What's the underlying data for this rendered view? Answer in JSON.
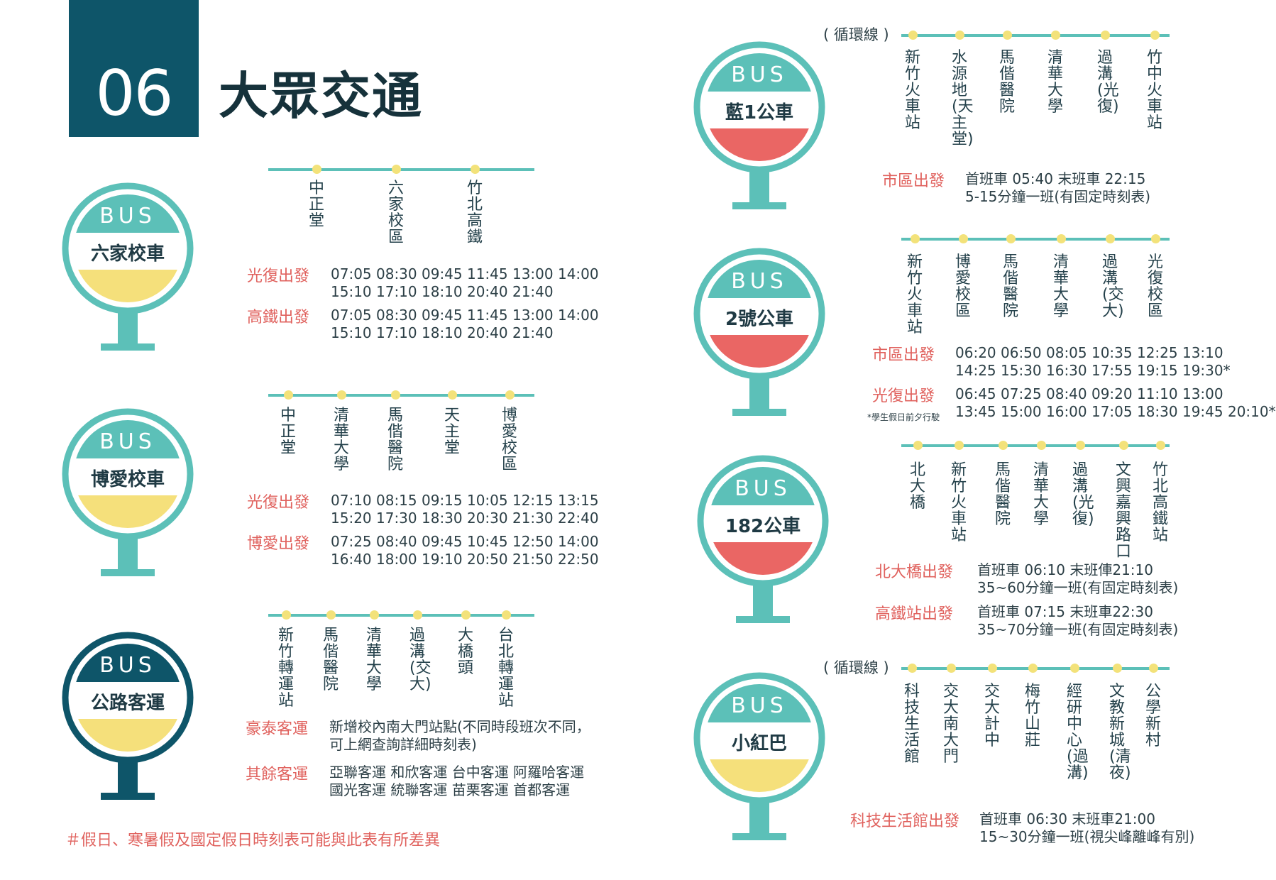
{
  "header": {
    "number": "06",
    "title": "大眾交通"
  },
  "colors": {
    "teal": "#5cc0b8",
    "red": "#ea6664",
    "yellow": "#f5e07b",
    "dark": "#0e5569",
    "accent_red": "#e0625e"
  },
  "bus_word": "BUS",
  "liujia": {
    "name": "六家校車",
    "stations": [
      "中正堂",
      "六家校區",
      "竹北高鐵"
    ],
    "rows": [
      {
        "label": "光復出發",
        "line1": "07:05 08:30 09:45 11:45 13:00 14:00",
        "line2": "15:10 17:10 18:10 20:40 21:40"
      },
      {
        "label": "高鐵出發",
        "line1": "07:05 08:30 09:45 11:45 13:00 14:00",
        "line2": "15:10 17:10 18:10 20:40 21:40"
      }
    ]
  },
  "boai": {
    "name": "博愛校車",
    "stations": [
      "中正堂",
      "清華大學",
      "馬偕醫院",
      "天主堂",
      "博愛校區"
    ],
    "rows": [
      {
        "label": "光復出發",
        "line1": "07:10 08:15 09:15 10:05 12:15 13:15",
        "line2": "15:20 17:30 18:30 20:30 21:30 22:40"
      },
      {
        "label": "博愛出發",
        "line1": "07:25 08:40 09:45 10:45 12:50 14:00",
        "line2": "16:40 18:00 19:10 20:50 21:50 22:50"
      }
    ]
  },
  "highway": {
    "name": "公路客運",
    "stations": [
      "新竹轉運站",
      "馬偕醫院",
      "清華大學",
      "過溝(交大)",
      "大橋頭",
      "台北轉運站"
    ],
    "rows": [
      {
        "label": "豪泰客運",
        "line1": "新增校內南大門站點(不同時段班次不同，",
        "line2": "可上網查詢詳細時刻表)"
      },
      {
        "label": "其餘客運",
        "line1": "亞聯客運  和欣客運  台中客運  阿羅哈客運",
        "line2": "國光客運  統聯客運  苗栗客運  首都客運"
      }
    ]
  },
  "footer_note": "＃假日、寒暑假及國定假日時刻表可能與此表有所差異",
  "blue1": {
    "name": "藍1公車",
    "loop": "( 循環線 )",
    "stations": [
      "新竹火車站",
      "水源地(天主堂)",
      "馬偕醫院",
      "清華大學",
      "過溝(光復)",
      "竹中火車站"
    ],
    "rows": [
      {
        "label": "市區出發",
        "line1": "首班車  05:40  末班車  22:15",
        "line2": "5-15分鐘一班(有固定時刻表)"
      }
    ]
  },
  "bus2": {
    "name": "2號公車",
    "stations": [
      "新竹火車站",
      "博愛校區",
      "馬偕醫院",
      "清華大學",
      "過溝(交大)",
      "光復校區"
    ],
    "note": "*學生假日前夕行駛",
    "rows": [
      {
        "label": "市區出發",
        "line1": "06:20 06:50 08:05 10:35 12:25 13:10",
        "line2": "14:25 15:30 16:30 17:55 19:15 19:30*"
      },
      {
        "label": "光復出發",
        "line1": "06:45 07:25 08:40 09:20 11:10 13:00",
        "line2": "13:45 15:00 16:00 17:05 18:30 19:45 20:10*"
      }
    ]
  },
  "bus182": {
    "name": "182公車",
    "stations": [
      "北大橋",
      "新竹火車站",
      "馬偕醫院",
      "清華大學",
      "過溝(光復)",
      "文興嘉興路口",
      "竹北高鐵站"
    ],
    "rows": [
      {
        "label": "北大橋出發",
        "line1": "首班車 06:10 末班俥21:10",
        "line2": "35~60分鐘一班(有固定時刻表)"
      },
      {
        "label": "高鐵站出發",
        "line1": "首班車 07:15 末班車22:30",
        "line2": "35~70分鐘一班(有固定時刻表)"
      }
    ]
  },
  "minired": {
    "name": "小紅巴",
    "loop": "( 循環線 )",
    "stations": [
      "科技生活館",
      "交大南大門",
      "交大計中",
      "梅竹山莊",
      "經研中心(過溝)",
      "文教新城(清夜)",
      "公學新村"
    ],
    "rows": [
      {
        "label": "科技生活館出發",
        "line1": "首班車 06:30 末班車21:00",
        "line2": "15~30分鐘一班(視尖峰離峰有別)"
      }
    ]
  }
}
